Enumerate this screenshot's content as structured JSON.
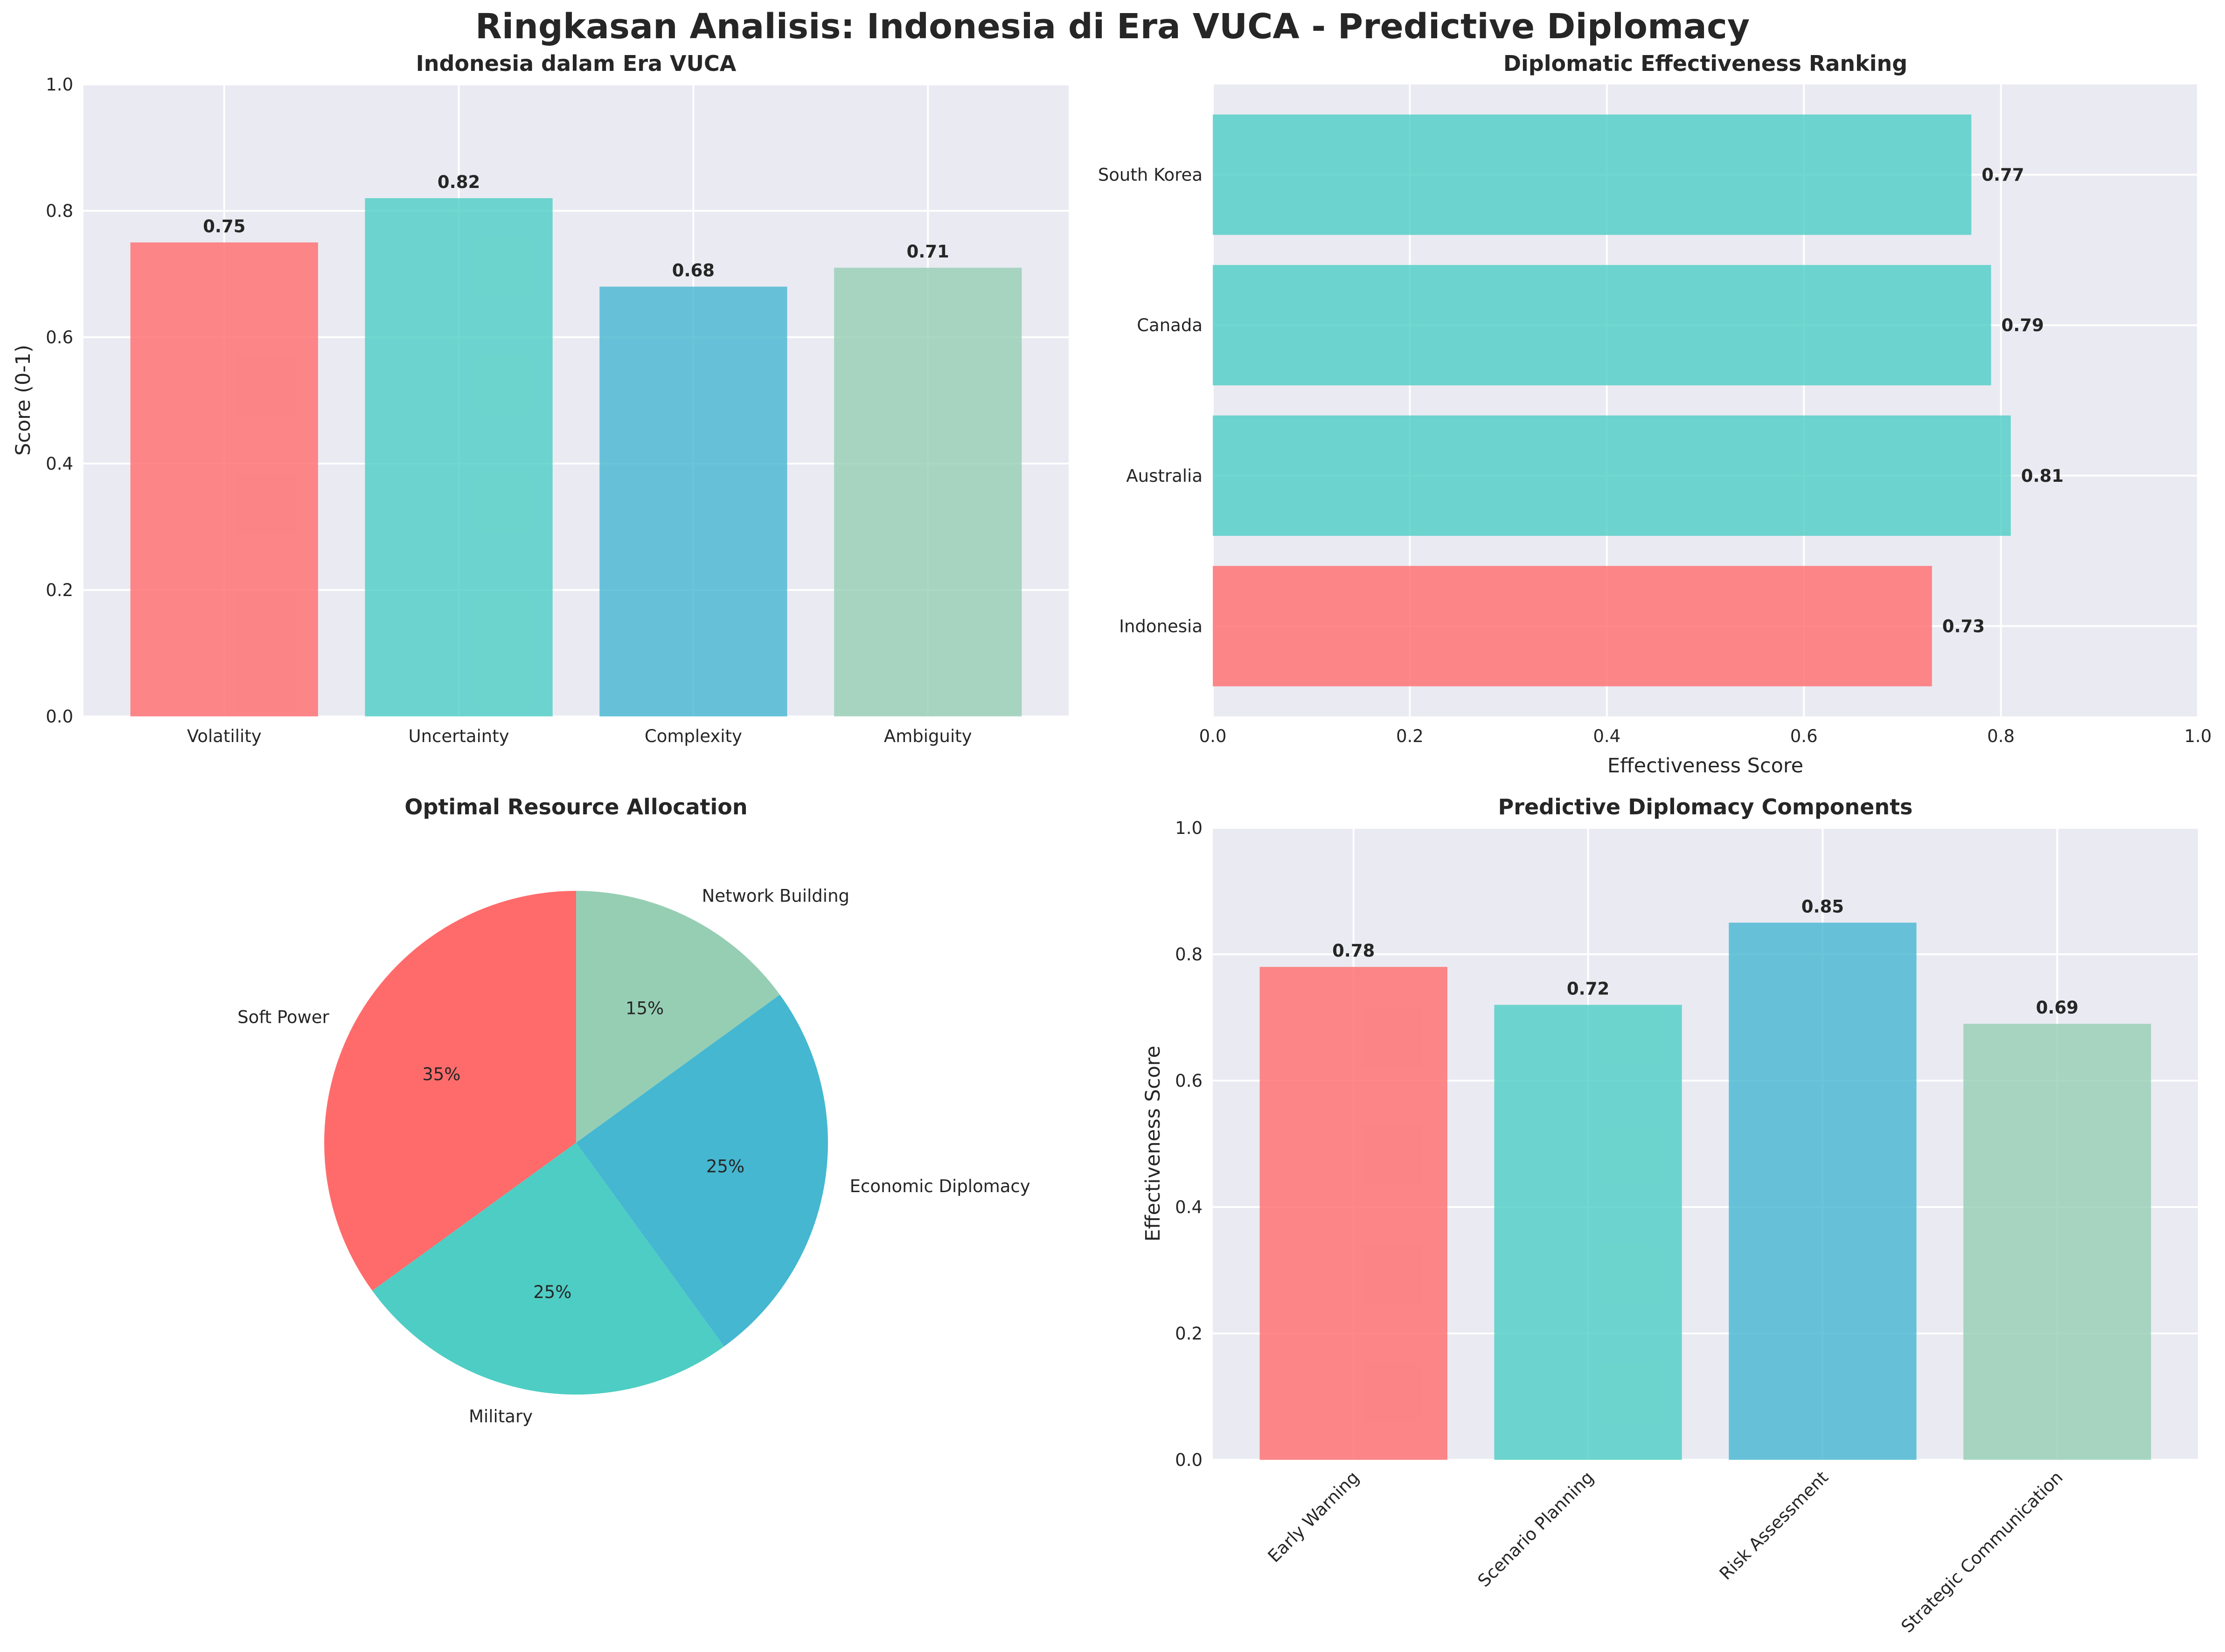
{
  "suptitle": "Ringkasan Analisis: Indonesia di Era VUCA - Predictive Diplomacy",
  "colors": [
    "#FF6B6B",
    "#4ECDC4",
    "#45B7D1",
    "#96CEB4"
  ],
  "chart_data": [
    {
      "type": "bar",
      "title": "Indonesia dalam Era VUCA",
      "xlabel": "",
      "ylabel": "Score (0-1)",
      "categories": [
        "Volatility",
        "Uncertainty",
        "Complexity",
        "Ambiguity"
      ],
      "values": [
        0.75,
        0.82,
        0.68,
        0.71
      ],
      "value_labels": [
        "0.75",
        "0.82",
        "0.68",
        "0.71"
      ],
      "ylim": [
        0,
        1
      ],
      "yticks": [
        "0.0",
        "0.2",
        "0.4",
        "0.6",
        "0.8",
        "1.0"
      ],
      "grid": true
    },
    {
      "type": "bar",
      "orientation": "horizontal",
      "title": "Diplomatic Effectiveness Ranking",
      "xlabel": "Effectiveness Score",
      "ylabel": "",
      "categories": [
        "Indonesia",
        "Australia",
        "Canada",
        "South Korea"
      ],
      "values": [
        0.73,
        0.81,
        0.79,
        0.77
      ],
      "value_labels": [
        "0.73",
        "0.81",
        "0.79",
        "0.77"
      ],
      "bar_colors": [
        "#FF6B6B",
        "#4ECDC4",
        "#4ECDC4",
        "#4ECDC4"
      ],
      "xlim": [
        0,
        1
      ],
      "xticks": [
        "0.0",
        "0.2",
        "0.4",
        "0.6",
        "0.8",
        "1.0"
      ],
      "grid": true
    },
    {
      "type": "pie",
      "title": "Optimal Resource Allocation",
      "labels": [
        "Soft Power",
        "Military",
        "Economic Diplomacy",
        "Network Building"
      ],
      "values": [
        35,
        25,
        25,
        15
      ],
      "pct_labels": [
        "35%",
        "25%",
        "25%",
        "15%"
      ]
    },
    {
      "type": "bar",
      "title": "Predictive Diplomacy Components",
      "xlabel": "",
      "ylabel": "Effectiveness Score",
      "categories": [
        "Early Warning",
        "Scenario Planning",
        "Risk Assessment",
        "Strategic Communication"
      ],
      "values": [
        0.78,
        0.72,
        0.85,
        0.69
      ],
      "value_labels": [
        "0.78",
        "0.72",
        "0.85",
        "0.69"
      ],
      "ylim": [
        0,
        1
      ],
      "yticks": [
        "0.0",
        "0.2",
        "0.4",
        "0.6",
        "0.8",
        "1.0"
      ],
      "grid": true
    }
  ]
}
